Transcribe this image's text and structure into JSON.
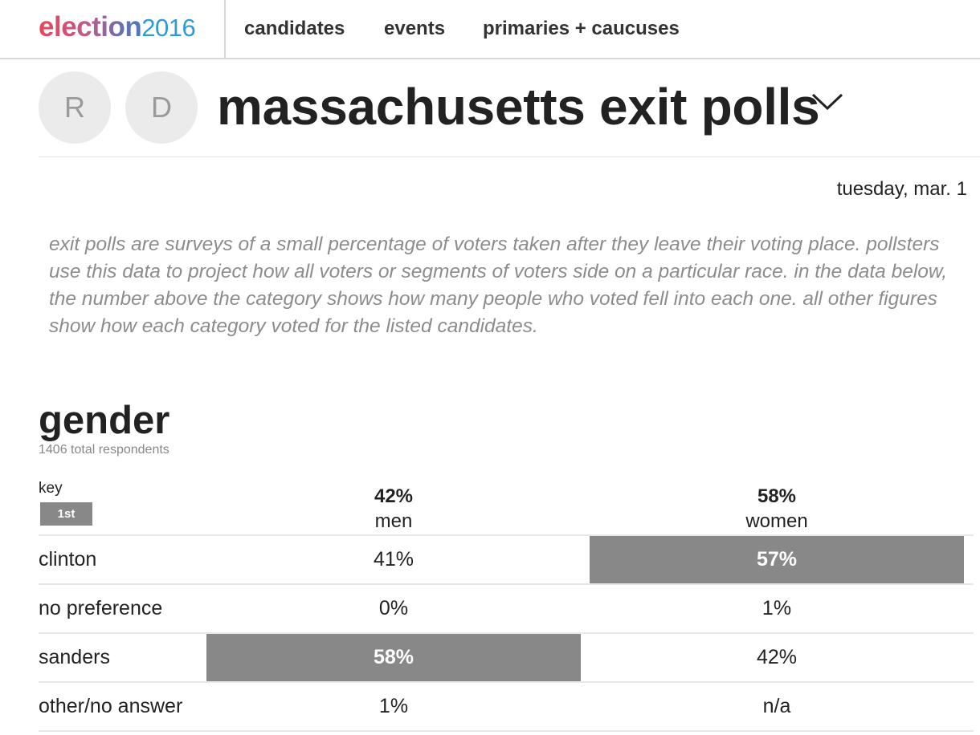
{
  "nav": {
    "logo_word": "election",
    "logo_year": "2016",
    "items": [
      "candidates",
      "events",
      "primaries + caucuses"
    ]
  },
  "header": {
    "party_buttons": [
      "R",
      "D"
    ],
    "title": "massachusetts exit polls",
    "date": "tuesday, mar. 1"
  },
  "description": "exit polls are surveys of a small percentage of voters taken after they leave their voting place. pollsters use this data to project how all voters or segments of voters side on a particular race. in the data below, the number above the category shows how many people who voted fell into each one. all other figures show how each category voted for the listed candidates.",
  "section": {
    "title": "gender",
    "respondents": "1406 total respondents",
    "key_label": "key",
    "key_badge": "1st",
    "columns": [
      {
        "pct": "42%",
        "label": "men"
      },
      {
        "pct": "58%",
        "label": "women"
      }
    ],
    "rows": [
      {
        "label": "clinton",
        "values": [
          "41%",
          "57%"
        ]
      },
      {
        "label": "no preference",
        "values": [
          "0%",
          "1%"
        ]
      },
      {
        "label": "sanders",
        "values": [
          "58%",
          "42%"
        ]
      },
      {
        "label": "other/no answer",
        "values": [
          "1%",
          "n/a"
        ]
      }
    ]
  },
  "colors": {
    "lead_fill": "#888888",
    "logo_year": "#2e9ad6",
    "description_text": "#8c8c8c"
  }
}
